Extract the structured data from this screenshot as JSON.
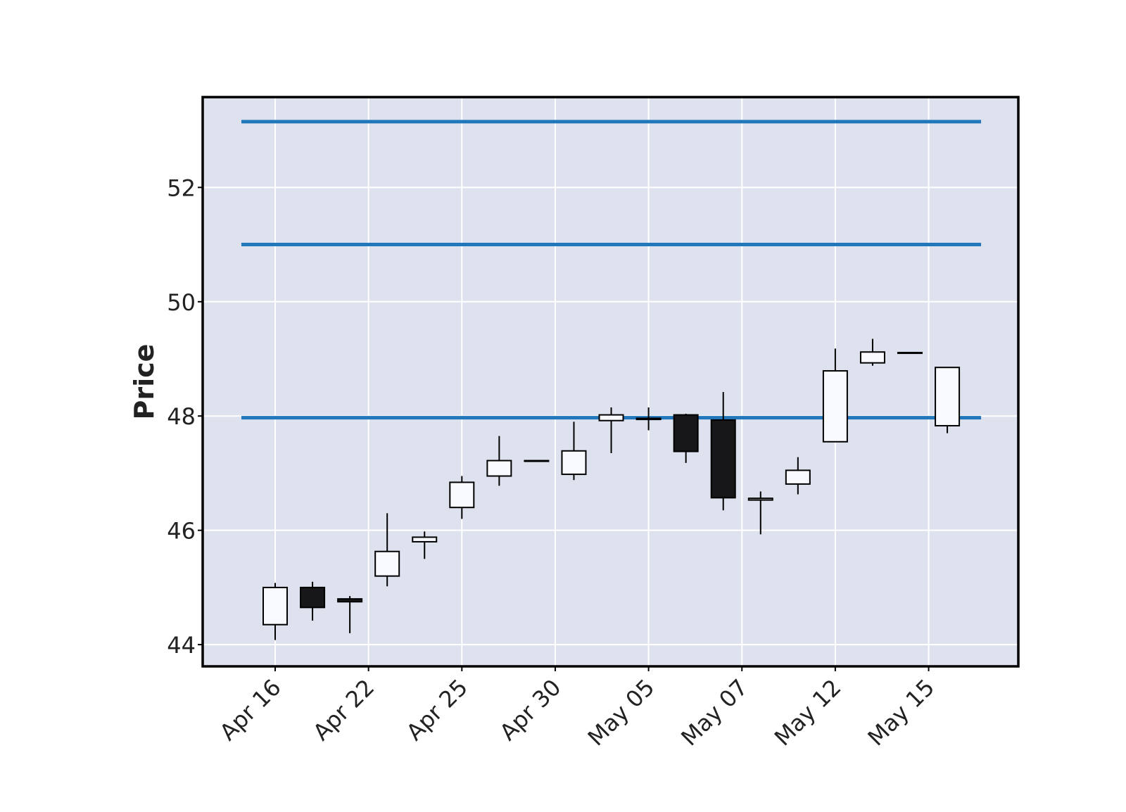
{
  "chart_data": {
    "type": "candlestick",
    "ylabel": "Price",
    "ylim": [
      43.62,
      53.58
    ],
    "y_ticks": [
      44,
      46,
      48,
      50,
      52
    ],
    "x_tick_labels": [
      "Apr 16",
      "Apr 22",
      "Apr 25",
      "Apr 30",
      "May 05",
      "May 07",
      "May 12",
      "May 15"
    ],
    "x_tick_candle_index": [
      0,
      2.5,
      5,
      7.5,
      10,
      12.5,
      15,
      17.5
    ],
    "grid": true,
    "colors": {
      "background": "#dde2ee",
      "grid": "#ffffff",
      "up_fill": "#f8faff",
      "down_fill": "#17171a",
      "candle_edge": "#000000",
      "hline": "#2277bb",
      "frame": "#000000"
    },
    "hlines": [
      47.97,
      51.0,
      53.15
    ],
    "candles": [
      {
        "open": 44.35,
        "high": 45.08,
        "low": 44.08,
        "close": 45.0
      },
      {
        "open": 45.0,
        "high": 45.1,
        "low": 44.42,
        "close": 44.65
      },
      {
        "open": 44.8,
        "high": 44.85,
        "low": 44.2,
        "close": 44.75
      },
      {
        "open": 45.2,
        "high": 46.3,
        "low": 45.02,
        "close": 45.63
      },
      {
        "open": 45.8,
        "high": 45.98,
        "low": 45.5,
        "close": 45.88
      },
      {
        "open": 46.4,
        "high": 46.95,
        "low": 46.2,
        "close": 46.84
      },
      {
        "open": 46.95,
        "high": 47.65,
        "low": 46.78,
        "close": 47.22
      },
      {
        "open": 47.22,
        "high": 47.22,
        "low": 47.22,
        "close": 47.22
      },
      {
        "open": 46.98,
        "high": 47.9,
        "low": 46.88,
        "close": 47.39
      },
      {
        "open": 47.92,
        "high": 48.15,
        "low": 47.35,
        "close": 48.02
      },
      {
        "open": 47.94,
        "high": 48.15,
        "low": 47.75,
        "close": 47.96
      },
      {
        "open": 48.02,
        "high": 48.04,
        "low": 47.18,
        "close": 47.38
      },
      {
        "open": 47.93,
        "high": 48.42,
        "low": 46.35,
        "close": 46.57
      },
      {
        "open": 46.53,
        "high": 46.68,
        "low": 45.93,
        "close": 46.56
      },
      {
        "open": 46.81,
        "high": 47.28,
        "low": 46.63,
        "close": 47.05
      },
      {
        "open": 47.55,
        "high": 49.18,
        "low": 47.55,
        "close": 48.79
      },
      {
        "open": 48.93,
        "high": 49.35,
        "low": 48.88,
        "close": 49.12
      },
      {
        "open": 49.11,
        "high": 49.11,
        "low": 49.11,
        "close": 49.11
      },
      {
        "open": 47.83,
        "high": 48.85,
        "low": 47.7,
        "close": 48.85
      }
    ]
  }
}
